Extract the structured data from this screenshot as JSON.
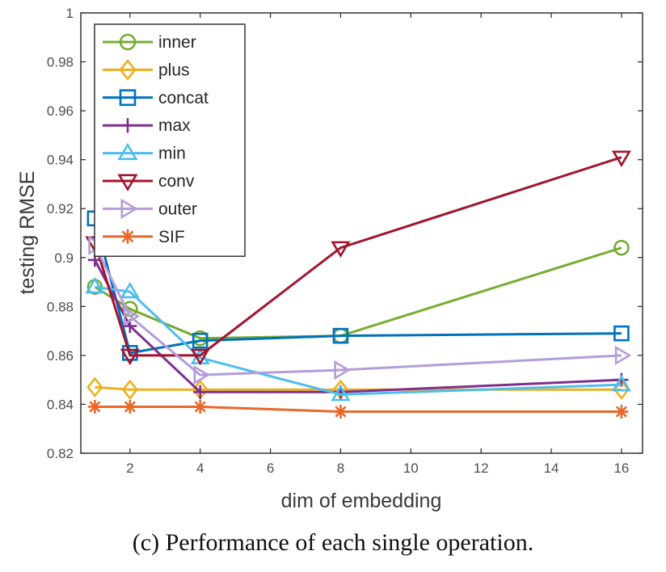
{
  "chart_data": {
    "type": "line",
    "xlabel": "dim of embedding",
    "ylabel": "testing RMSE",
    "xlim": [
      0.6,
      16.6
    ],
    "ylim": [
      0.82,
      1.0
    ],
    "xticks": [
      2,
      4,
      6,
      8,
      10,
      12,
      14,
      16
    ],
    "yticks": [
      0.82,
      0.84,
      0.86,
      0.88,
      0.9,
      0.92,
      0.94,
      0.96,
      0.98,
      1
    ],
    "ytick_labels": [
      "0.82",
      "0.84",
      "0.86",
      "0.88",
      "0.9",
      "0.92",
      "0.94",
      "0.96",
      "0.98",
      "1"
    ],
    "grid": false,
    "legend_position": "top-left",
    "x": [
      1,
      2,
      4,
      8,
      16
    ],
    "series": [
      {
        "name": "inner",
        "values": [
          0.888,
          0.879,
          0.867,
          0.868,
          0.904
        ],
        "color": "#77ac30",
        "marker": "circle"
      },
      {
        "name": "plus",
        "values": [
          0.847,
          0.846,
          0.846,
          0.846,
          0.846
        ],
        "color": "#edb120",
        "marker": "diamond"
      },
      {
        "name": "concat",
        "values": [
          0.916,
          0.861,
          0.866,
          0.868,
          0.869
        ],
        "color": "#0072bd",
        "marker": "square"
      },
      {
        "name": "max",
        "values": [
          0.899,
          0.872,
          0.845,
          0.845,
          0.85
        ],
        "color": "#7e2f8e",
        "marker": "plus"
      },
      {
        "name": "min",
        "values": [
          0.888,
          0.886,
          0.859,
          0.844,
          0.848
        ],
        "color": "#4dbeee",
        "marker": "triangle-up"
      },
      {
        "name": "conv",
        "values": [
          0.906,
          0.86,
          0.86,
          0.904,
          0.941
        ],
        "color": "#a2142f",
        "marker": "triangle-down"
      },
      {
        "name": "outer",
        "values": [
          0.905,
          0.876,
          0.852,
          0.854,
          0.86
        ],
        "color": "#b39ddb",
        "marker": "triangle-right"
      },
      {
        "name": "SIF",
        "values": [
          0.839,
          0.839,
          0.839,
          0.837,
          0.837
        ],
        "color": "#e8682a",
        "marker": "asterisk"
      }
    ]
  },
  "caption": "(c) Performance of each single operation."
}
